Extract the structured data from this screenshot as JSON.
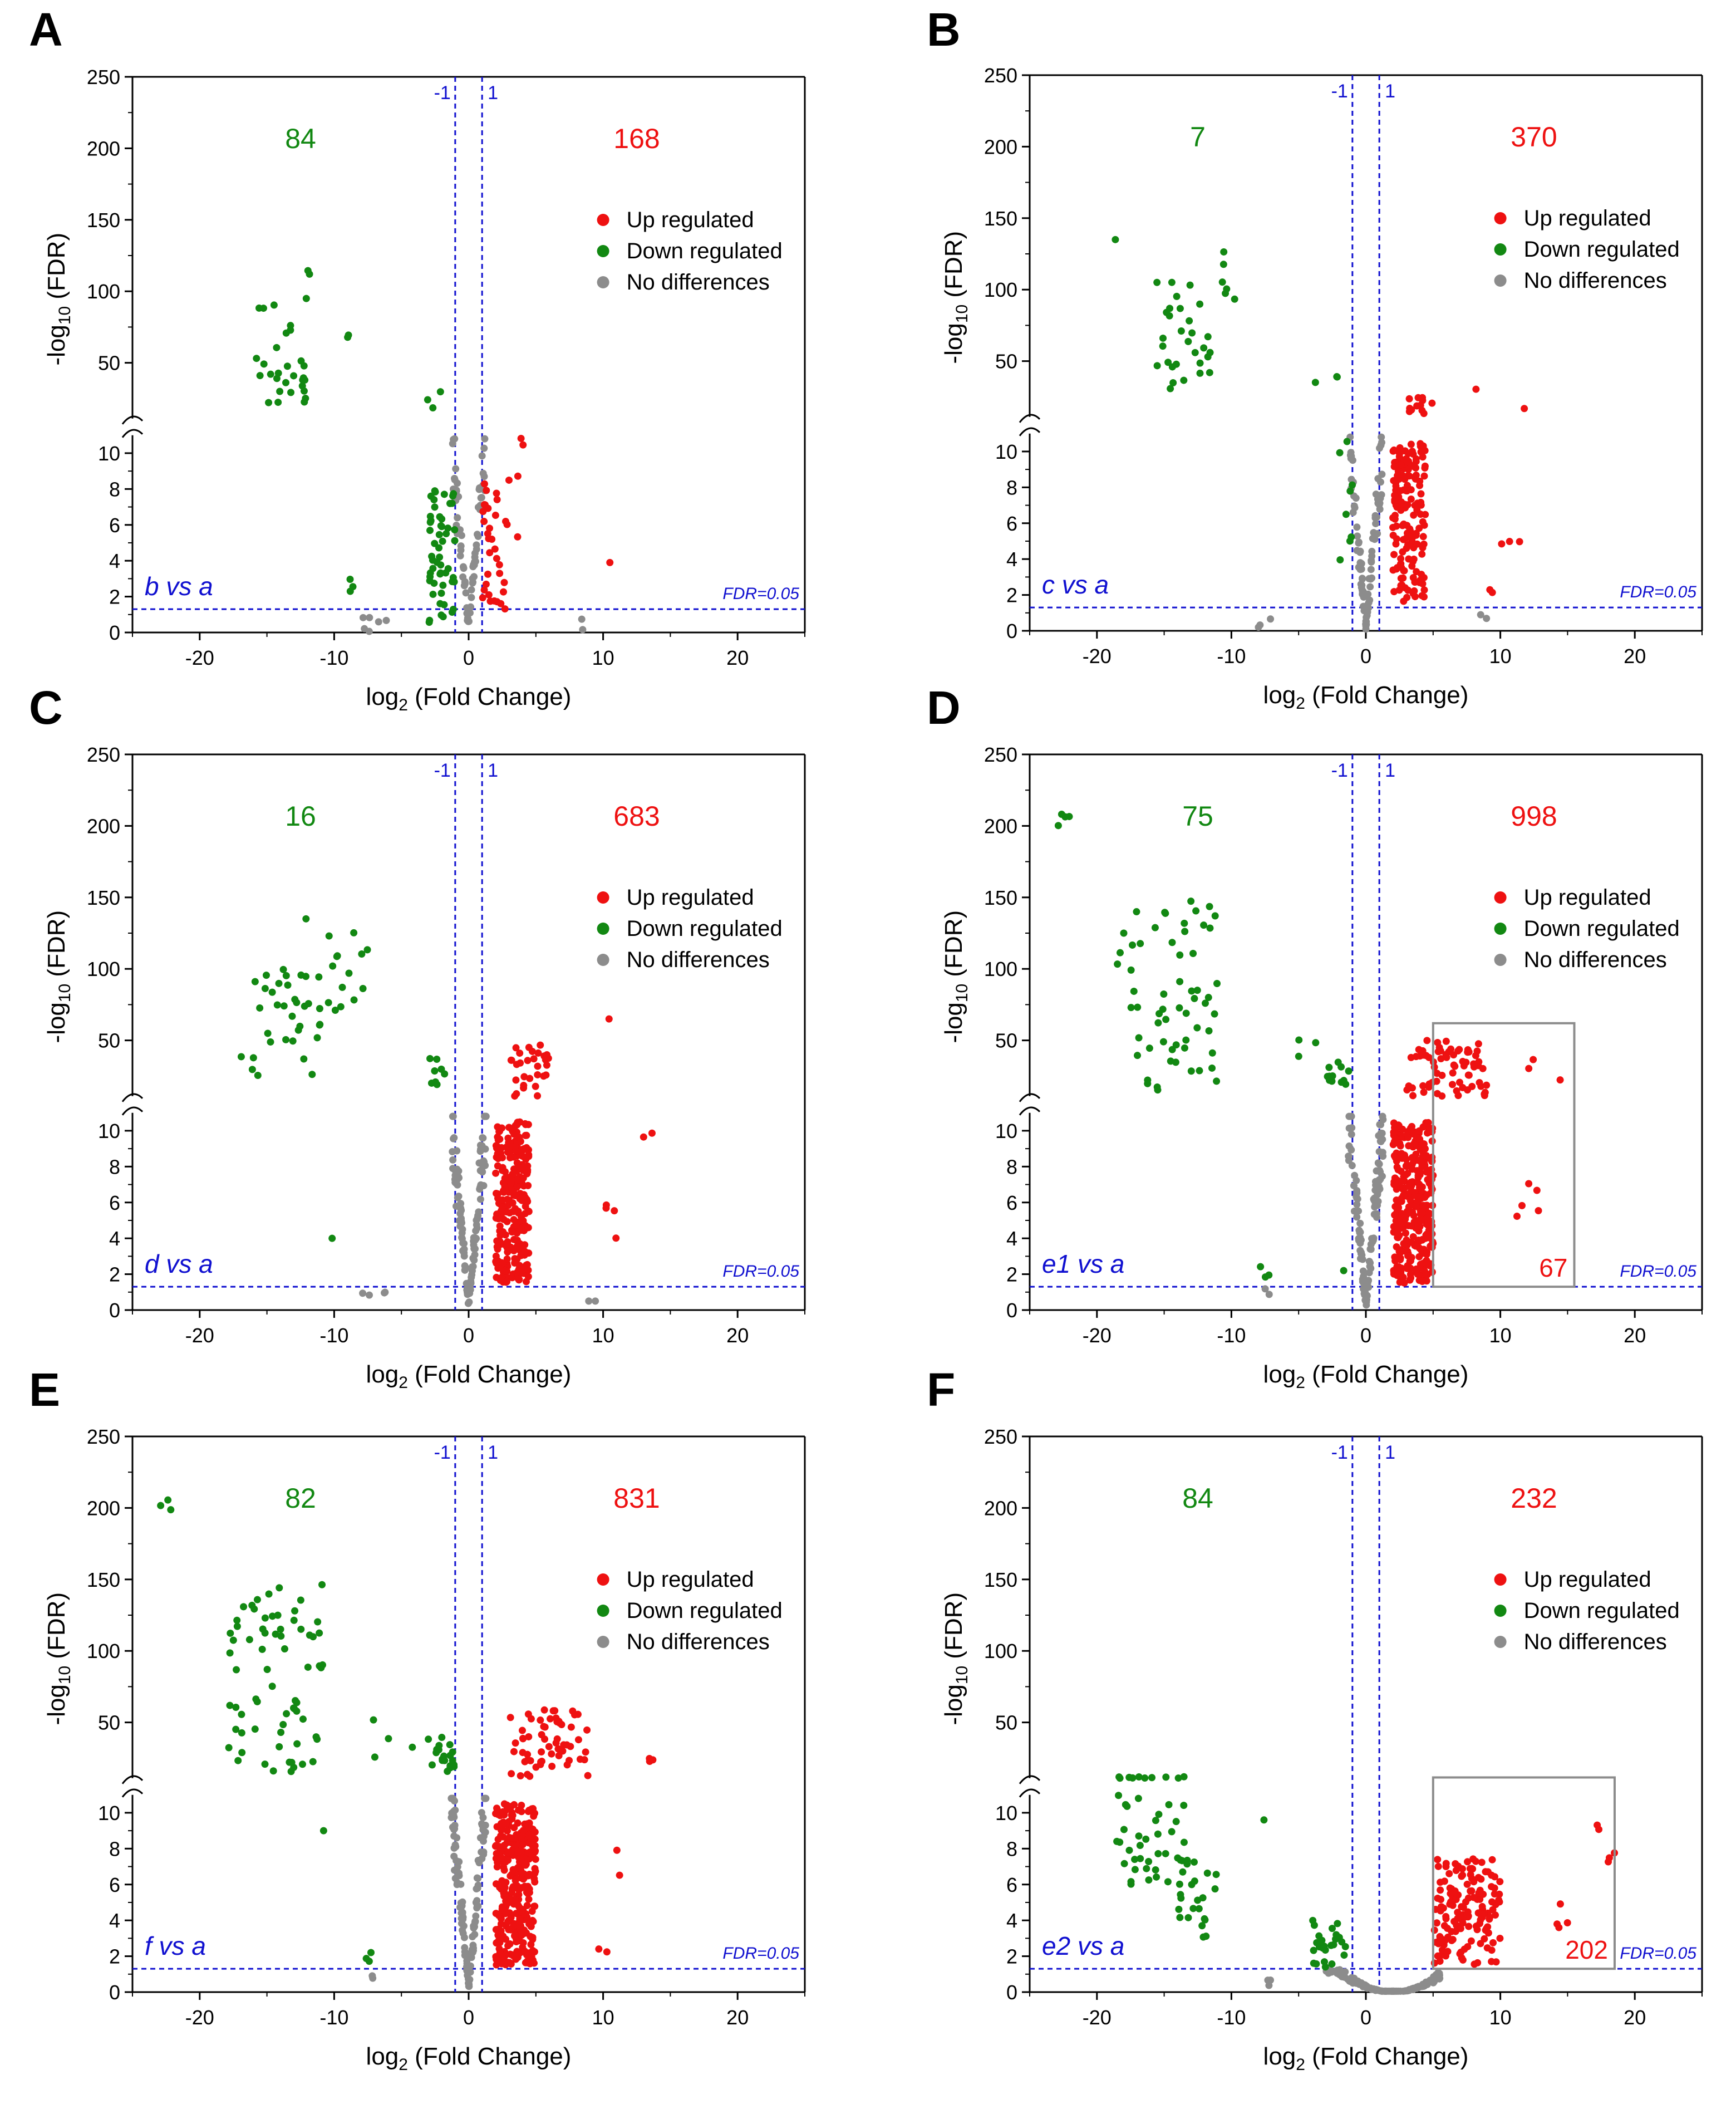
{
  "colors": {
    "up": "#ee1111",
    "down": "#128812",
    "none": "#8c8c8c",
    "threshold": "#1010d0"
  },
  "chart_data": [
    {
      "type": "scatter",
      "panel": "A",
      "comparison": "b vs a",
      "xlabel": "log",
      "xlabel_sub": "2",
      "xlabel_tail": " (Fold Change)",
      "ylabel_head": "-log",
      "ylabel_sub": "10",
      "ylabel_tail": " (FDR)",
      "xlim": [
        -25,
        25
      ],
      "xticks": [
        -20,
        -10,
        0,
        10,
        20
      ],
      "ylim_lower": [
        0,
        11
      ],
      "ylim_upper": [
        11,
        250
      ],
      "yticks_lower": [
        0,
        2,
        4,
        6,
        8,
        10
      ],
      "yticks_upper": [
        50,
        100,
        150,
        200,
        250
      ],
      "fc_thresholds": {
        "neg": "-1",
        "pos": "1"
      },
      "fdr_label": "FDR=0.05",
      "fdr_threshold": 1.3,
      "down_count": "84",
      "up_count": "168",
      "legend": [
        "Up regulated",
        "Down regulated",
        "No differences"
      ],
      "down_clusters": [
        {
          "x0": -16,
          "x1": -12,
          "y0": 22,
          "y1": 96,
          "n": 30
        },
        {
          "x0": -12,
          "x1": -10.5,
          "y0": 112,
          "y1": 118,
          "n": 2
        },
        {
          "x0": -9,
          "x1": -8,
          "y0": 66,
          "y1": 70,
          "n": 2
        },
        {
          "x0": -3.5,
          "x1": -2,
          "y0": 15,
          "y1": 30,
          "n": 3
        },
        {
          "x0": -3,
          "x1": -1,
          "y0": 0.5,
          "y1": 8,
          "n": 55
        },
        {
          "x0": -9,
          "x1": -8.5,
          "y0": 1.3,
          "y1": 3,
          "n": 3
        }
      ],
      "up_clusters": [
        {
          "x0": 1,
          "x1": 3,
          "y0": 0.5,
          "y1": 8.5,
          "n": 35
        },
        {
          "x0": 2.5,
          "x1": 4.5,
          "y0": 1,
          "y1": 12,
          "n": 4
        },
        {
          "x0": 10.5,
          "x1": 10.8,
          "y0": 3.9,
          "y1": 3.9,
          "n": 1
        }
      ],
      "none_clusters": [
        {
          "x0": -8,
          "x1": -6,
          "y0": 0,
          "y1": 1,
          "n": 6
        },
        {
          "x0": 8,
          "x1": 8.5,
          "y0": 0,
          "y1": 1,
          "n": 2
        }
      ],
      "volcano": {
        "spread": 1.2,
        "n": 70
      },
      "box": null
    },
    {
      "type": "scatter",
      "panel": "B",
      "comparison": "c vs a",
      "xlabel": "log",
      "xlabel_sub": "2",
      "xlabel_tail": " (Fold Change)",
      "ylabel_head": "-log",
      "ylabel_sub": "10",
      "ylabel_tail": " (FDR)",
      "xlim": [
        -25,
        25
      ],
      "xticks": [
        -20,
        -10,
        0,
        10,
        20
      ],
      "ylim_lower": [
        0,
        11
      ],
      "ylim_upper": [
        11,
        250
      ],
      "yticks_lower": [
        0,
        2,
        4,
        6,
        8,
        10
      ],
      "yticks_upper": [
        50,
        100,
        150,
        200,
        250
      ],
      "fc_thresholds": {
        "neg": "-1",
        "pos": "1"
      },
      "fdr_label": "FDR=0.05",
      "fdr_threshold": 1.3,
      "down_count": "7",
      "up_count": "370",
      "legend": [
        "Up regulated",
        "Down regulated",
        "No differences"
      ],
      "down_clusters": [
        {
          "x0": -16,
          "x1": -11.5,
          "y0": 30,
          "y1": 106,
          "n": 30
        },
        {
          "x0": -18.8,
          "x1": -18.5,
          "y0": 135,
          "y1": 135,
          "n": 1
        },
        {
          "x0": -11,
          "x1": -9.5,
          "y0": 80,
          "y1": 130,
          "n": 6
        },
        {
          "x0": -4,
          "x1": -2,
          "y0": 15,
          "y1": 40,
          "n": 3
        },
        {
          "x0": -2,
          "x1": -1,
          "y0": 2,
          "y1": 11,
          "n": 8
        }
      ],
      "up_clusters": [
        {
          "x0": 2,
          "x1": 4.5,
          "y0": 1.5,
          "y1": 10.5,
          "n": 160
        },
        {
          "x0": 3,
          "x1": 5,
          "y0": 11,
          "y1": 25,
          "n": 12
        },
        {
          "x0": 8,
          "x1": 13,
          "y0": 15,
          "y1": 40,
          "n": 2
        },
        {
          "x0": 10,
          "x1": 12,
          "y0": 4.3,
          "y1": 5.1,
          "n": 3
        },
        {
          "x0": 9,
          "x1": 9.5,
          "y0": 2,
          "y1": 2.3,
          "n": 2
        }
      ],
      "none_clusters": [
        {
          "x0": -8,
          "x1": -6,
          "y0": 0,
          "y1": 1,
          "n": 3
        },
        {
          "x0": 8,
          "x1": 9,
          "y0": 0.3,
          "y1": 1,
          "n": 2
        }
      ],
      "volcano": {
        "spread": 1.2,
        "n": 90
      },
      "box": null
    },
    {
      "type": "scatter",
      "panel": "C",
      "comparison": "d vs a",
      "xlabel": "log",
      "xlabel_sub": "2",
      "xlabel_tail": " (Fold Change)",
      "ylabel_head": "-log",
      "ylabel_sub": "10",
      "ylabel_tail": " (FDR)",
      "xlim": [
        -25,
        25
      ],
      "xticks": [
        -20,
        -10,
        0,
        10,
        20
      ],
      "ylim_lower": [
        0,
        11
      ],
      "ylim_upper": [
        11,
        250
      ],
      "yticks_lower": [
        0,
        2,
        4,
        6,
        8,
        10
      ],
      "yticks_upper": [
        50,
        100,
        150,
        200,
        250
      ],
      "fc_thresholds": {
        "neg": "-1",
        "pos": "1"
      },
      "fdr_label": "FDR=0.05",
      "fdr_threshold": 1.3,
      "down_count": "16",
      "up_count": "683",
      "legend": [
        "Up regulated",
        "Down regulated",
        "No differences"
      ],
      "down_clusters": [
        {
          "x0": -17,
          "x1": -11,
          "y0": 25,
          "y1": 100,
          "n": 35
        },
        {
          "x0": -12.5,
          "x1": -12,
          "y0": 135,
          "y1": 135,
          "n": 1
        },
        {
          "x0": -10.5,
          "x1": -7.5,
          "y0": 68,
          "y1": 128,
          "n": 14
        },
        {
          "x0": -10.3,
          "x1": -10,
          "y0": 4,
          "y1": 4,
          "n": 1
        },
        {
          "x0": -3,
          "x1": -1.5,
          "y0": 15,
          "y1": 40,
          "n": 8
        }
      ],
      "up_clusters": [
        {
          "x0": 2,
          "x1": 4.5,
          "y0": 1.5,
          "y1": 10.5,
          "n": 280
        },
        {
          "x0": 3,
          "x1": 6,
          "y0": 11,
          "y1": 50,
          "n": 30
        },
        {
          "x0": 10,
          "x1": 11,
          "y0": 3.3,
          "y1": 6.5,
          "n": 4
        },
        {
          "x0": 10,
          "x1": 10.5,
          "y0": 65,
          "y1": 65,
          "n": 1
        },
        {
          "x0": 12,
          "x1": 14,
          "y0": 9.5,
          "y1": 10.3,
          "n": 2
        }
      ],
      "none_clusters": [
        {
          "x0": -8,
          "x1": -6,
          "y0": 0.5,
          "y1": 1,
          "n": 4
        },
        {
          "x0": 8.5,
          "x1": 9.5,
          "y0": 0.5,
          "y1": 0.5,
          "n": 2
        }
      ],
      "volcano": {
        "spread": 1.3,
        "n": 110
      },
      "box": null
    },
    {
      "type": "scatter",
      "panel": "D",
      "comparison": "e1 vs a",
      "xlabel": "log",
      "xlabel_sub": "2",
      "xlabel_tail": " (Fold Change)",
      "ylabel_head": "-log",
      "ylabel_sub": "10",
      "ylabel_tail": " (FDR)",
      "xlim": [
        -25,
        25
      ],
      "xticks": [
        -20,
        -10,
        0,
        10,
        20
      ],
      "ylim_lower": [
        0,
        11
      ],
      "ylim_upper": [
        11,
        250
      ],
      "yticks_lower": [
        0,
        2,
        4,
        6,
        8,
        10
      ],
      "yticks_upper": [
        50,
        100,
        150,
        200,
        250
      ],
      "fc_thresholds": {
        "neg": "-1",
        "pos": "1"
      },
      "fdr_label": "FDR=0.05",
      "fdr_threshold": 1.3,
      "down_count": "75",
      "up_count": "998",
      "legend": [
        "Up regulated",
        "Down regulated",
        "No differences"
      ],
      "down_clusters": [
        {
          "x0": -23,
          "x1": -21.5,
          "y0": 195,
          "y1": 212,
          "n": 4
        },
        {
          "x0": -18.5,
          "x1": -11,
          "y0": 15,
          "y1": 148,
          "n": 60
        },
        {
          "x0": -5,
          "x1": -3.5,
          "y0": 25,
          "y1": 55,
          "n": 3
        },
        {
          "x0": -3,
          "x1": -1,
          "y0": 15,
          "y1": 35,
          "n": 12
        },
        {
          "x0": -8,
          "x1": -7,
          "y0": 1.5,
          "y1": 2.5,
          "n": 3
        },
        {
          "x0": -1.8,
          "x1": -1.5,
          "y0": 2.2,
          "y1": 2.2,
          "n": 1
        }
      ],
      "up_clusters": [
        {
          "x0": 2,
          "x1": 5,
          "y0": 1.5,
          "y1": 10.5,
          "n": 350
        },
        {
          "x0": 3,
          "x1": 9,
          "y0": 11,
          "y1": 50,
          "n": 70
        },
        {
          "x0": 12,
          "x1": 14.5,
          "y0": 22,
          "y1": 38,
          "n": 3
        },
        {
          "x0": 11,
          "x1": 13,
          "y0": 2.5,
          "y1": 8.5,
          "n": 5
        }
      ],
      "none_clusters": [
        {
          "x0": -7.5,
          "x1": -7,
          "y0": 0.5,
          "y1": 1.5,
          "n": 2
        }
      ],
      "volcano": {
        "spread": 1.3,
        "n": 120
      },
      "box": {
        "x0": 5,
        "x1": 15.5,
        "y_bottom": 1.3,
        "y_top": 62,
        "count": "67"
      }
    },
    {
      "type": "scatter",
      "panel": "E",
      "comparison": "f vs a",
      "xlabel": "log",
      "xlabel_sub": "2",
      "xlabel_tail": " (Fold Change)",
      "ylabel_head": "-log",
      "ylabel_sub": "10",
      "ylabel_tail": " (FDR)",
      "xlim": [
        -25,
        25
      ],
      "xticks": [
        -20,
        -10,
        0,
        10,
        20
      ],
      "ylim_lower": [
        0,
        11
      ],
      "ylim_upper": [
        11,
        250
      ],
      "yticks_lower": [
        0,
        2,
        4,
        6,
        8,
        10
      ],
      "yticks_upper": [
        50,
        100,
        150,
        200,
        250
      ],
      "fc_thresholds": {
        "neg": "-1",
        "pos": "1"
      },
      "fdr_label": "FDR=0.05",
      "fdr_threshold": 1.3,
      "down_count": "82",
      "up_count": "831",
      "legend": [
        "Up regulated",
        "Down regulated",
        "No differences"
      ],
      "down_clusters": [
        {
          "x0": -23,
          "x1": -22,
          "y0": 195,
          "y1": 212,
          "n": 3
        },
        {
          "x0": -18,
          "x1": -10.5,
          "y0": 15,
          "y1": 148,
          "n": 70
        },
        {
          "x0": -11,
          "x1": -10.5,
          "y0": 9,
          "y1": 9,
          "n": 1
        },
        {
          "x0": -7.5,
          "x1": -4,
          "y0": 15,
          "y1": 60,
          "n": 4
        },
        {
          "x0": -3,
          "x1": -1,
          "y0": 15,
          "y1": 40,
          "n": 20
        },
        {
          "x0": -8,
          "x1": -7,
          "y0": 1.5,
          "y1": 2.5,
          "n": 3
        }
      ],
      "up_clusters": [
        {
          "x0": 2,
          "x1": 5,
          "y0": 1.5,
          "y1": 10.5,
          "n": 330
        },
        {
          "x0": 3,
          "x1": 9,
          "y0": 11,
          "y1": 60,
          "n": 60
        },
        {
          "x0": 13,
          "x1": 14,
          "y0": 22,
          "y1": 30,
          "n": 3
        },
        {
          "x0": 11,
          "x1": 12.5,
          "y0": 6,
          "y1": 8,
          "n": 2
        },
        {
          "x0": 9.5,
          "x1": 10.5,
          "y0": 2,
          "y1": 2.7,
          "n": 2
        }
      ],
      "none_clusters": [
        {
          "x0": -7.5,
          "x1": -7,
          "y0": 0.5,
          "y1": 1,
          "n": 2
        }
      ],
      "volcano": {
        "spread": 1.3,
        "n": 120
      },
      "box": null
    },
    {
      "type": "scatter",
      "panel": "F",
      "comparison": "e2 vs a",
      "xlabel": "log",
      "xlabel_sub": "2",
      "xlabel_tail": " (Fold Change)",
      "ylabel_head": "-log",
      "ylabel_sub": "10",
      "ylabel_tail": " (FDR)",
      "xlim": [
        -25,
        25
      ],
      "xticks": [
        -20,
        -10,
        0,
        10,
        20
      ],
      "ylim_lower": [
        0,
        11
      ],
      "ylim_upper": [
        11,
        250
      ],
      "yticks_lower": [
        0,
        2,
        4,
        6,
        8,
        10
      ],
      "yticks_upper": [
        50,
        100,
        150,
        200,
        250
      ],
      "fc_thresholds": {
        "neg": "-1",
        "pos": "1"
      },
      "fdr_label": "FDR=0.05",
      "fdr_threshold": 1.3,
      "down_count": "84",
      "up_count": "232",
      "legend": [
        "Up regulated",
        "Down regulated",
        "No differences"
      ],
      "down_clusters": [
        {
          "x0": -19,
          "x1": -13.5,
          "y0": 6,
          "y1": 12,
          "n": 45
        },
        {
          "x0": -14,
          "x1": -11,
          "y0": 3,
          "y1": 7.5,
          "n": 25
        },
        {
          "x0": -8,
          "x1": -7.5,
          "y0": 9.6,
          "y1": 9.6,
          "n": 1
        },
        {
          "x0": -4,
          "x1": -1.5,
          "y0": 1.4,
          "y1": 4,
          "n": 25
        }
      ],
      "up_clusters": [
        {
          "x0": 5,
          "x1": 10,
          "y0": 1.5,
          "y1": 7.5,
          "n": 150
        },
        {
          "x0": 14,
          "x1": 15,
          "y0": 3.5,
          "y1": 5.5,
          "n": 4
        },
        {
          "x0": 17,
          "x1": 18.5,
          "y0": 7,
          "y1": 9.8,
          "n": 5
        }
      ],
      "none_clusters": [
        {
          "x0": -8,
          "x1": -6,
          "y0": 0.2,
          "y1": 0.8,
          "n": 3
        }
      ],
      "volcano": {
        "spread": 3,
        "n": 150,
        "shifted": true
      },
      "box": {
        "x0": 5,
        "x1": 18.5,
        "y_bottom": 1.3,
        "y_top": 11.5,
        "count": "202"
      }
    }
  ]
}
